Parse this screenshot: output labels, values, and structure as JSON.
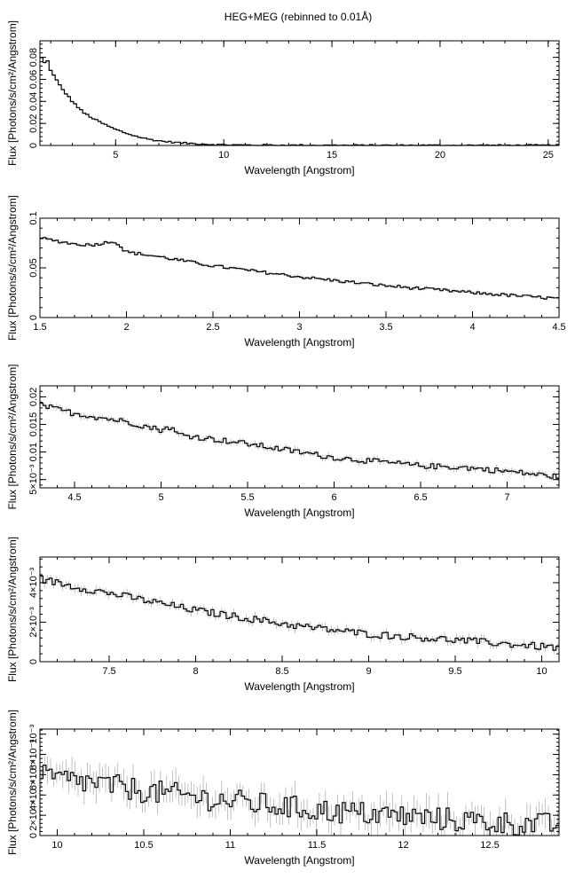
{
  "figure_title": "HEG+MEG (rebinned to 0.01Å)",
  "chart_data": [
    {
      "type": "line",
      "title": "HEG+MEG (rebinned to 0.01Å)",
      "xlabel": "Wavelength [Angstrom]",
      "ylabel": "Flux [Photons/s/cm²/Angstrom]",
      "xlim": [
        1.5,
        25.5
      ],
      "ylim": [
        0,
        0.095
      ],
      "xticks": [
        5,
        10,
        15,
        20,
        25
      ],
      "xtick_labels": [
        "5",
        "10",
        "15",
        "20",
        "25"
      ],
      "yticks": [
        0,
        0.02,
        0.04,
        0.06,
        0.08
      ],
      "ytick_labels": [
        "0",
        "0.02",
        "0.04",
        "0.06",
        "0.08"
      ],
      "series": [
        {
          "x": [
            1.5,
            1.7,
            1.9,
            2.0,
            2.5,
            3.0,
            3.5,
            4.0,
            4.5,
            5.0,
            5.5,
            6.0,
            6.5,
            7.0,
            7.5,
            8.0,
            8.5,
            9.0,
            9.5,
            10.0,
            11.0,
            12.0,
            13.0,
            15.0,
            18.0,
            21.0,
            25.5
          ],
          "values": [
            0.082,
            0.075,
            0.077,
            0.068,
            0.052,
            0.04,
            0.03,
            0.024,
            0.019,
            0.0145,
            0.011,
            0.008,
            0.0058,
            0.0042,
            0.0032,
            0.0024,
            0.0018,
            0.0013,
            0.0009,
            0.0006,
            0.0004,
            0.0003,
            0.0002,
            0.0001,
            0.0001,
            0.0001,
            0.0001
          ],
          "noise": 0.0007
        }
      ]
    },
    {
      "type": "line",
      "title": "",
      "xlabel": "Wavelength [Angstrom]",
      "ylabel": "Flux [Photons/s/cm²/Angstrom]",
      "xlim": [
        1.5,
        4.5
      ],
      "ylim": [
        0,
        0.1
      ],
      "xticks": [
        1.5,
        2,
        2.5,
        3,
        3.5,
        4,
        4.5
      ],
      "xtick_labels": [
        "1.5",
        "2",
        "2.5",
        "3",
        "3.5",
        "4",
        "4.5"
      ],
      "yticks": [
        0,
        0.05,
        0.1
      ],
      "ytick_labels": [
        "0",
        "0.05",
        "0.1"
      ],
      "series": [
        {
          "x": [
            1.5,
            1.6,
            1.7,
            1.8,
            1.9,
            1.93,
            2.0,
            2.2,
            2.5,
            3.0,
            3.5,
            4.0,
            4.5
          ],
          "values": [
            0.08,
            0.077,
            0.074,
            0.073,
            0.076,
            0.077,
            0.066,
            0.061,
            0.052,
            0.041,
            0.032,
            0.025,
            0.019
          ],
          "noise": 0.0015
        }
      ]
    },
    {
      "type": "line",
      "title": "",
      "xlabel": "Wavelength [Angstrom]",
      "ylabel": "Flux [Photons/s/cm²/Angstrom]",
      "xlim": [
        4.3,
        7.3
      ],
      "ylim": [
        0.0035,
        0.022
      ],
      "xticks": [
        4.5,
        5,
        5.5,
        6,
        6.5,
        7
      ],
      "xtick_labels": [
        "4.5",
        "5",
        "5.5",
        "6",
        "6.5",
        "7"
      ],
      "yticks": [
        0.005,
        0.01,
        0.015,
        0.02
      ],
      "ytick_labels": [
        "5×10⁻³",
        "0.01",
        "0.015",
        "0.02"
      ],
      "series": [
        {
          "x": [
            4.3,
            4.5,
            4.8,
            5.0,
            5.05,
            5.1,
            5.5,
            6.0,
            6.5,
            6.75,
            7.0,
            7.3
          ],
          "values": [
            0.0185,
            0.017,
            0.0155,
            0.014,
            0.0145,
            0.0132,
            0.0115,
            0.009,
            0.0075,
            0.0072,
            0.0065,
            0.0055
          ],
          "noise": 0.0005
        }
      ]
    },
    {
      "type": "line",
      "title": "",
      "xlabel": "Wavelength [Angstrom]",
      "ylabel": "Flux [Photons/s/cm²/Angstrom]",
      "xlim": [
        7.1,
        10.1
      ],
      "ylim": [
        0,
        0.0053
      ],
      "xticks": [
        7.5,
        8,
        8.5,
        9,
        9.5,
        10
      ],
      "xtick_labels": [
        "7.5",
        "8",
        "8.5",
        "9",
        "9.5",
        "10"
      ],
      "yticks": [
        0,
        0.002,
        0.004
      ],
      "ytick_labels": [
        "0",
        "2×10⁻³",
        "4×10⁻³"
      ],
      "series": [
        {
          "x": [
            7.1,
            7.3,
            7.6,
            8.0,
            8.3,
            8.6,
            9.0,
            9.5,
            10.1
          ],
          "values": [
            0.0042,
            0.0038,
            0.0033,
            0.0026,
            0.0022,
            0.0018,
            0.0014,
            0.0011,
            0.0007
          ],
          "noise": 0.00018
        }
      ]
    },
    {
      "type": "line",
      "title": "",
      "xlabel": "Wavelength [Angstrom]",
      "ylabel": "Flux [Photons/s/cm²/Angstrom]",
      "xlim": [
        9.9,
        12.9
      ],
      "ylim": [
        0,
        0.00105
      ],
      "xticks": [
        10,
        10.5,
        11,
        11.5,
        12,
        12.5
      ],
      "xtick_labels": [
        "10",
        "10.5",
        "11",
        "11.5",
        "12",
        "12.5"
      ],
      "yticks": [
        0,
        0.0002,
        0.0004,
        0.0006,
        0.0008,
        0.001
      ],
      "ytick_labels": [
        "0",
        "2×10⁻⁴",
        "4×10⁻⁴",
        "6×10⁻⁴",
        "8×10⁻⁴",
        "10⁻³"
      ],
      "series": [
        {
          "x": [
            9.9,
            10.2,
            10.5,
            11.0,
            11.5,
            12.0,
            12.5,
            12.9
          ],
          "values": [
            0.00058,
            0.00052,
            0.00044,
            0.00034,
            0.00025,
            0.00019,
            0.00013,
            0.0001
          ],
          "noise": 0.00012
        }
      ]
    }
  ]
}
